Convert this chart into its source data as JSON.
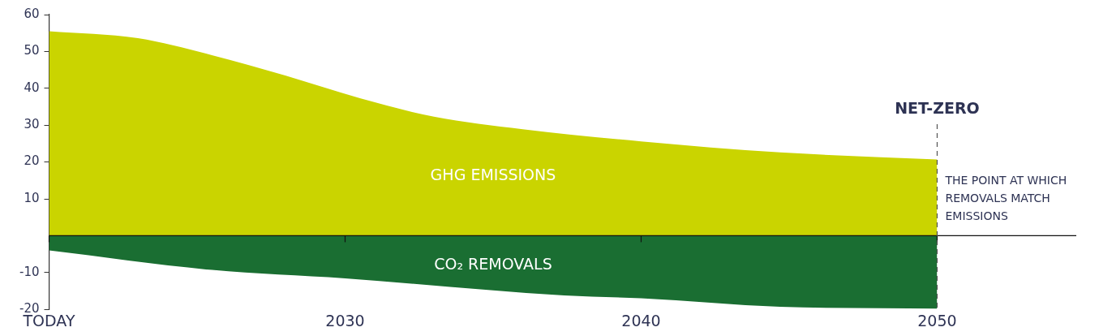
{
  "chart_data": {
    "type": "area",
    "x": [
      2020,
      2023,
      2025.5,
      2028,
      2030.5,
      2033,
      2036,
      2040,
      2044.7,
      2050
    ],
    "series": [
      {
        "name": "GHG EMISSIONS",
        "color": "#cad400",
        "values": [
          55.5,
          53.6,
          49.0,
          43.4,
          37.3,
          32.3,
          28.9,
          25.6,
          22.6,
          20.7
        ]
      },
      {
        "name": "CO₂ REMOVALS",
        "color": "#1a6e32",
        "x": [
          2020,
          2025.5,
          2030,
          2037.4,
          2040,
          2044.7,
          2050
        ],
        "values": [
          -4.0,
          -9.3,
          -11.6,
          -16.2,
          -17.0,
          -19.3,
          -19.8
        ]
      }
    ],
    "xlim": [
      2020,
      2054.7
    ],
    "xticks": [
      {
        "value": 2020,
        "label": "TODAY"
      },
      2030,
      2040,
      2050
    ],
    "ylim": [
      -20,
      60
    ],
    "yticks": [
      -20,
      -10,
      10,
      20,
      30,
      40,
      50,
      60
    ],
    "grid": false,
    "legend": false,
    "ref_lines": [
      {
        "axis": "x",
        "value": 2050,
        "label": "NET-ZERO",
        "line_style": "dashed",
        "color": "#555555"
      }
    ],
    "annotations": [
      {
        "text": "THE POINT AT WHICH REMOVALS MATCH EMISSIONS",
        "x": 2050,
        "y": 10
      }
    ]
  }
}
